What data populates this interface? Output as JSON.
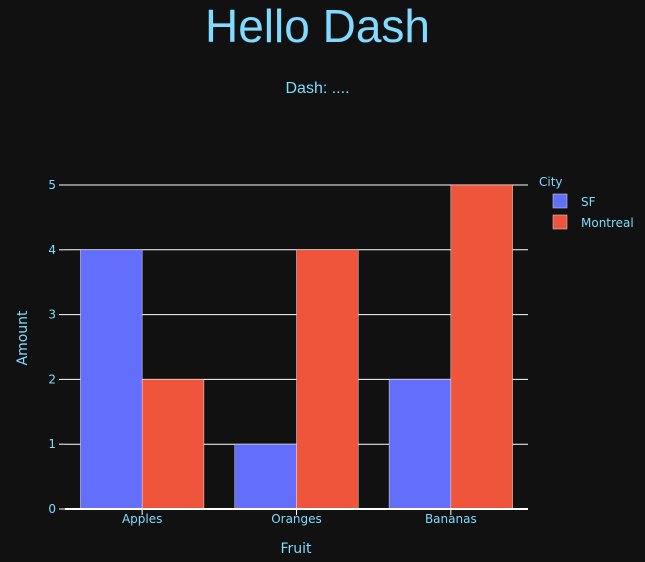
{
  "header": {
    "title": "Hello Dash",
    "subtitle": "Dash: ...."
  },
  "colors": {
    "background": "#111111",
    "text": "#7FDBFF",
    "gridline": "#ffffff",
    "bar_outline": "#e5e5e5"
  },
  "chart_data": {
    "type": "bar",
    "barmode": "group",
    "categories": [
      "Apples",
      "Oranges",
      "Bananas"
    ],
    "series": [
      {
        "name": "SF",
        "values": [
          4,
          1,
          2
        ],
        "color": "#636EFA"
      },
      {
        "name": "Montreal",
        "values": [
          2,
          4,
          5
        ],
        "color": "#EF553B"
      }
    ],
    "xlabel": "Fruit",
    "ylabel": "Amount",
    "ylim": [
      0,
      5
    ],
    "yticks": [
      0,
      1,
      2,
      3,
      4,
      5
    ],
    "grid": true,
    "legend": {
      "title": "City",
      "placement": "top-right"
    }
  }
}
